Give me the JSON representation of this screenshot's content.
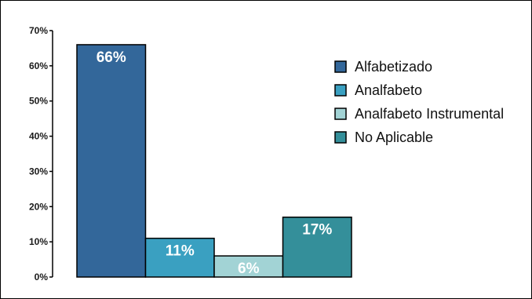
{
  "chart_data": {
    "type": "bar",
    "title": "",
    "xlabel": "",
    "ylabel": "",
    "ylim": [
      0,
      70
    ],
    "y_tick_values": [
      0,
      10,
      20,
      30,
      40,
      50,
      60,
      70
    ],
    "y_tick_labels": [
      "0%",
      "10%",
      "20%",
      "30%",
      "40%",
      "50%",
      "60%",
      "70%"
    ],
    "grid": false,
    "legend_position": "right",
    "categories": [
      "Alfabetizado",
      "Analfabeto",
      "Analfabeto Instrumental",
      "No Aplicable"
    ],
    "values": [
      66,
      11,
      6,
      17
    ],
    "data_labels": [
      "66%",
      "11%",
      "6%",
      "17%"
    ],
    "colors": [
      "#33679a",
      "#3aa0c1",
      "#a2d3d5",
      "#348f9a"
    ]
  }
}
